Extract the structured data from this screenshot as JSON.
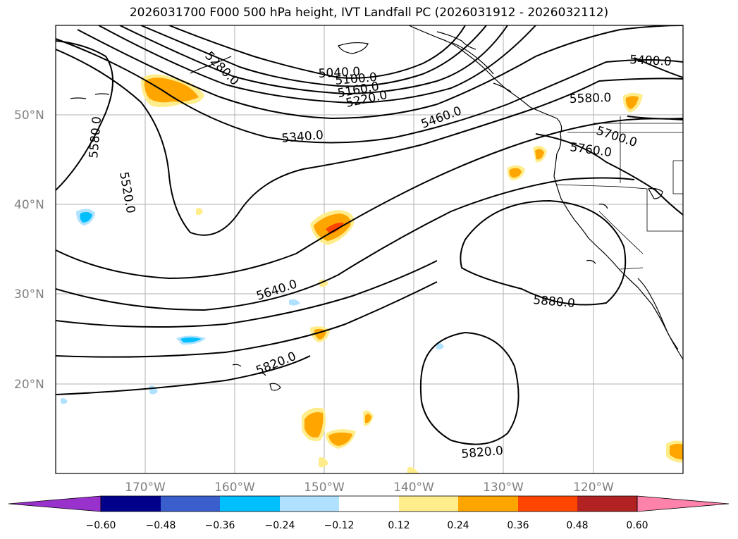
{
  "title": "2026031700 F000 500 hPa height, IVT Landfall PC (2026031912 - 2026032112)",
  "map": {
    "lat_labels": [
      "50°N",
      "40°N",
      "30°N",
      "20°N"
    ],
    "lon_labels": [
      "170°W",
      "160°W",
      "150°W",
      "140°W",
      "130°W",
      "120°W"
    ],
    "contour_labels": [
      "5040.0",
      "5100.0",
      "5160.0",
      "5220.0",
      "5280.0",
      "5340.0",
      "5400.0",
      "5460.0",
      "5520.0",
      "5580.0",
      "5580.0",
      "5640.0",
      "5700.0",
      "5760.0",
      "5820.0",
      "5820.0",
      "5880.0"
    ]
  },
  "colorbar": {
    "ticks": [
      "−0.60",
      "−0.48",
      "−0.36",
      "−0.24",
      "−0.12",
      "0.12",
      "0.24",
      "0.36",
      "0.48",
      "0.60"
    ],
    "colors": [
      "#9932CC",
      "#00008B",
      "#3A5FCD",
      "#00BFFF",
      "#B0E2FF",
      "#FFFFFF",
      "#FFEC8B",
      "#FFA500",
      "#FF4500",
      "#B22222",
      "#FF82AB"
    ]
  }
}
